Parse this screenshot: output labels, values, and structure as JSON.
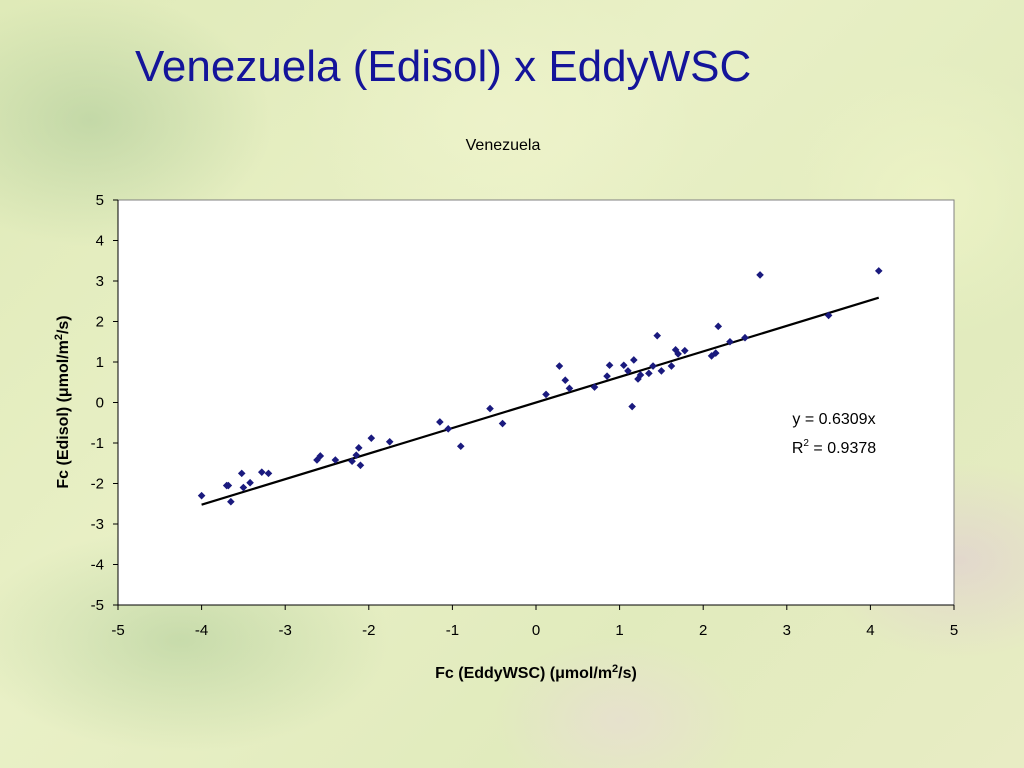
{
  "slide": {
    "title": "Venezuela (Edisol) x EddyWSC"
  },
  "chart_data": {
    "type": "scatter",
    "title": "Venezuela",
    "xlabel": "Fc (EddyWSC) (μmol/m²/s)",
    "ylabel": "Fc (Edisol) (μmol/m²/s)",
    "xlim": [
      -5,
      5
    ],
    "ylim": [
      -5,
      5
    ],
    "xticks": [
      -5,
      -4,
      -3,
      -2,
      -1,
      0,
      1,
      2,
      3,
      4,
      5
    ],
    "yticks": [
      -5,
      -4,
      -3,
      -2,
      -1,
      0,
      1,
      2,
      3,
      4,
      5
    ],
    "grid": false,
    "legend": "none",
    "point_color": "#1a1a7e",
    "line_color": "#000000",
    "trendline": {
      "slope": 0.6309,
      "intercept": 0,
      "x_range": [
        -4.0,
        4.1
      ],
      "equation": "y = 0.6309x",
      "r2_label": "R",
      "r2_sup": "2",
      "r2_value": " = 0.9378"
    },
    "points": [
      [
        -4.0,
        -2.3
      ],
      [
        -3.7,
        -2.05
      ],
      [
        -3.68,
        -2.05
      ],
      [
        -3.65,
        -2.45
      ],
      [
        -3.52,
        -1.75
      ],
      [
        -3.5,
        -2.1
      ],
      [
        -3.42,
        -1.98
      ],
      [
        -3.28,
        -1.72
      ],
      [
        -3.2,
        -1.75
      ],
      [
        -2.62,
        -1.42
      ],
      [
        -2.58,
        -1.32
      ],
      [
        -2.4,
        -1.42
      ],
      [
        -2.2,
        -1.45
      ],
      [
        -2.15,
        -1.3
      ],
      [
        -2.12,
        -1.12
      ],
      [
        -2.1,
        -1.55
      ],
      [
        -1.97,
        -0.88
      ],
      [
        -1.75,
        -0.97
      ],
      [
        -1.15,
        -0.48
      ],
      [
        -1.05,
        -0.65
      ],
      [
        -0.9,
        -1.08
      ],
      [
        -0.55,
        -0.15
      ],
      [
        -0.4,
        -0.52
      ],
      [
        0.12,
        0.2
      ],
      [
        0.28,
        0.9
      ],
      [
        0.35,
        0.55
      ],
      [
        0.4,
        0.35
      ],
      [
        0.7,
        0.38
      ],
      [
        0.85,
        0.65
      ],
      [
        0.88,
        0.92
      ],
      [
        1.05,
        0.92
      ],
      [
        1.1,
        0.78
      ],
      [
        1.15,
        -0.1
      ],
      [
        1.17,
        1.05
      ],
      [
        1.22,
        0.58
      ],
      [
        1.25,
        0.68
      ],
      [
        1.35,
        0.72
      ],
      [
        1.4,
        0.9
      ],
      [
        1.45,
        1.65
      ],
      [
        1.5,
        0.78
      ],
      [
        1.62,
        0.9
      ],
      [
        1.67,
        1.3
      ],
      [
        1.7,
        1.2
      ],
      [
        1.78,
        1.28
      ],
      [
        2.1,
        1.15
      ],
      [
        2.15,
        1.22
      ],
      [
        2.18,
        1.88
      ],
      [
        2.32,
        1.5
      ],
      [
        2.5,
        1.6
      ],
      [
        2.68,
        3.15
      ],
      [
        3.5,
        2.15
      ],
      [
        4.1,
        3.25
      ]
    ]
  }
}
